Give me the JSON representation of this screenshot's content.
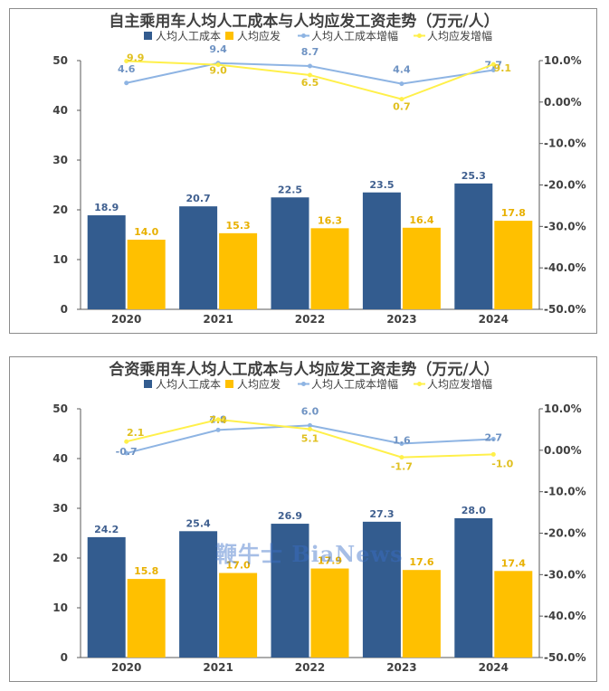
{
  "watermark": "鞭牛士 BiaNews",
  "chart_data": [
    {
      "type": "bar",
      "title": "自主乘用车人均人工成本与人均应发工资走势（万元/人）",
      "categories": [
        "2020",
        "2021",
        "2022",
        "2023",
        "2024"
      ],
      "ylim": [
        0,
        50
      ],
      "yticks": [
        "0",
        "10",
        "20",
        "30",
        "40",
        "50"
      ],
      "y2lim": [
        -50,
        10
      ],
      "y2ticks": [
        "-50.0%",
        "-40.0%",
        "-30.0%",
        "-20.0%",
        "-10.0%",
        "0.00%",
        "10.0%"
      ],
      "legend_position": "top",
      "series": [
        {
          "name": "人均人工成本",
          "kind": "bar",
          "values": [
            18.9,
            20.7,
            22.5,
            23.5,
            25.3
          ],
          "labels": [
            "18.9",
            "20.7",
            "22.5",
            "23.5",
            "25.3"
          ],
          "color": "#335C8F"
        },
        {
          "name": "人均应发",
          "kind": "bar",
          "values": [
            14.0,
            15.3,
            16.3,
            16.4,
            17.8
          ],
          "labels": [
            "14.0",
            "15.3",
            "16.3",
            "16.4",
            "17.8"
          ],
          "color": "#FFC000"
        },
        {
          "name": "人均人工成本增幅",
          "kind": "line",
          "axis": "right",
          "values": [
            4.6,
            9.4,
            8.7,
            4.4,
            7.7
          ],
          "labels": [
            "4.6",
            "9.4",
            "8.7",
            "4.4",
            "7.7"
          ],
          "color": "#8EB4E3"
        },
        {
          "name": "人均应发增幅",
          "kind": "line",
          "axis": "right",
          "values": [
            9.9,
            9.0,
            6.5,
            0.7,
            9.1
          ],
          "labels": [
            "9.9",
            "9.0",
            "6.5",
            "0.7",
            "9.1"
          ],
          "color": "#FFF04A"
        }
      ]
    },
    {
      "type": "bar",
      "title": "合资乘用车人均人工成本与人均应发工资走势（万元/人）",
      "categories": [
        "2020",
        "2021",
        "2022",
        "2023",
        "2024"
      ],
      "ylim": [
        0,
        50
      ],
      "yticks": [
        "0",
        "10",
        "20",
        "30",
        "40",
        "50"
      ],
      "y2lim": [
        -50,
        10
      ],
      "y2ticks": [
        "-50.0%",
        "-40.0%",
        "-30.0%",
        "-20.0%",
        "-10.0%",
        "0.00%",
        "10.0%"
      ],
      "legend_position": "top",
      "series": [
        {
          "name": "人均人工成本",
          "kind": "bar",
          "values": [
            24.2,
            25.4,
            26.9,
            27.3,
            28.0
          ],
          "labels": [
            "24.2",
            "25.4",
            "26.9",
            "27.3",
            "28.0"
          ],
          "color": "#335C8F"
        },
        {
          "name": "人均应发",
          "kind": "bar",
          "values": [
            15.8,
            17.0,
            17.9,
            17.6,
            17.4
          ],
          "labels": [
            "15.8",
            "17.0",
            "17.9",
            "17.6",
            "17.4"
          ],
          "color": "#FFC000"
        },
        {
          "name": "人均人工成本增幅",
          "kind": "line",
          "axis": "right",
          "values": [
            -0.7,
            4.9,
            6.0,
            1.6,
            2.7
          ],
          "labels": [
            "-0.7",
            "4.9",
            "6.0",
            "1.6",
            "2.7"
          ],
          "color": "#8EB4E3"
        },
        {
          "name": "人均应发增幅",
          "kind": "line",
          "axis": "right",
          "values": [
            2.1,
            7.4,
            5.1,
            -1.7,
            -1.0
          ],
          "labels": [
            "2.1",
            "7.4",
            "5.1",
            "-1.7",
            "-1.0"
          ],
          "color": "#FFF04A"
        }
      ]
    }
  ]
}
